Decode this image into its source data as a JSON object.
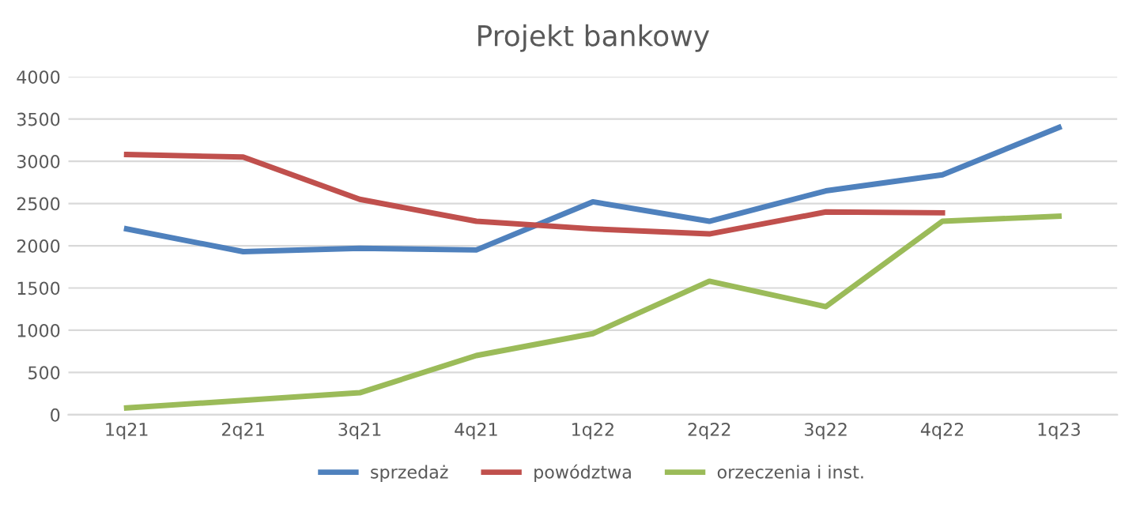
{
  "chart_data": {
    "type": "line",
    "title": "Projekt bankowy",
    "categories": [
      "1q21",
      "2q21",
      "3q21",
      "4q21",
      "1q22",
      "2q22",
      "3q22",
      "4q22",
      "1q23"
    ],
    "series": [
      {
        "name": "sprzedaż",
        "color": "#4f81bd",
        "values": [
          2200,
          1930,
          1970,
          1950,
          2520,
          2290,
          2650,
          2840,
          3400
        ]
      },
      {
        "name": "powództwa",
        "color": "#c0504d",
        "values": [
          3080,
          3050,
          2550,
          2290,
          2200,
          2140,
          2400,
          2390,
          null
        ]
      },
      {
        "name": "orzeczenia i inst.",
        "color": "#9bbb59",
        "values": [
          80,
          170,
          260,
          700,
          960,
          1580,
          1280,
          2290,
          2350
        ]
      }
    ],
    "ylim": [
      0,
      4000
    ],
    "yticks": [
      0,
      500,
      1000,
      1500,
      2000,
      2500,
      3000,
      3500,
      4000
    ],
    "grid": "y",
    "legend": "bottom",
    "marker": "none",
    "line_style": "solid"
  }
}
